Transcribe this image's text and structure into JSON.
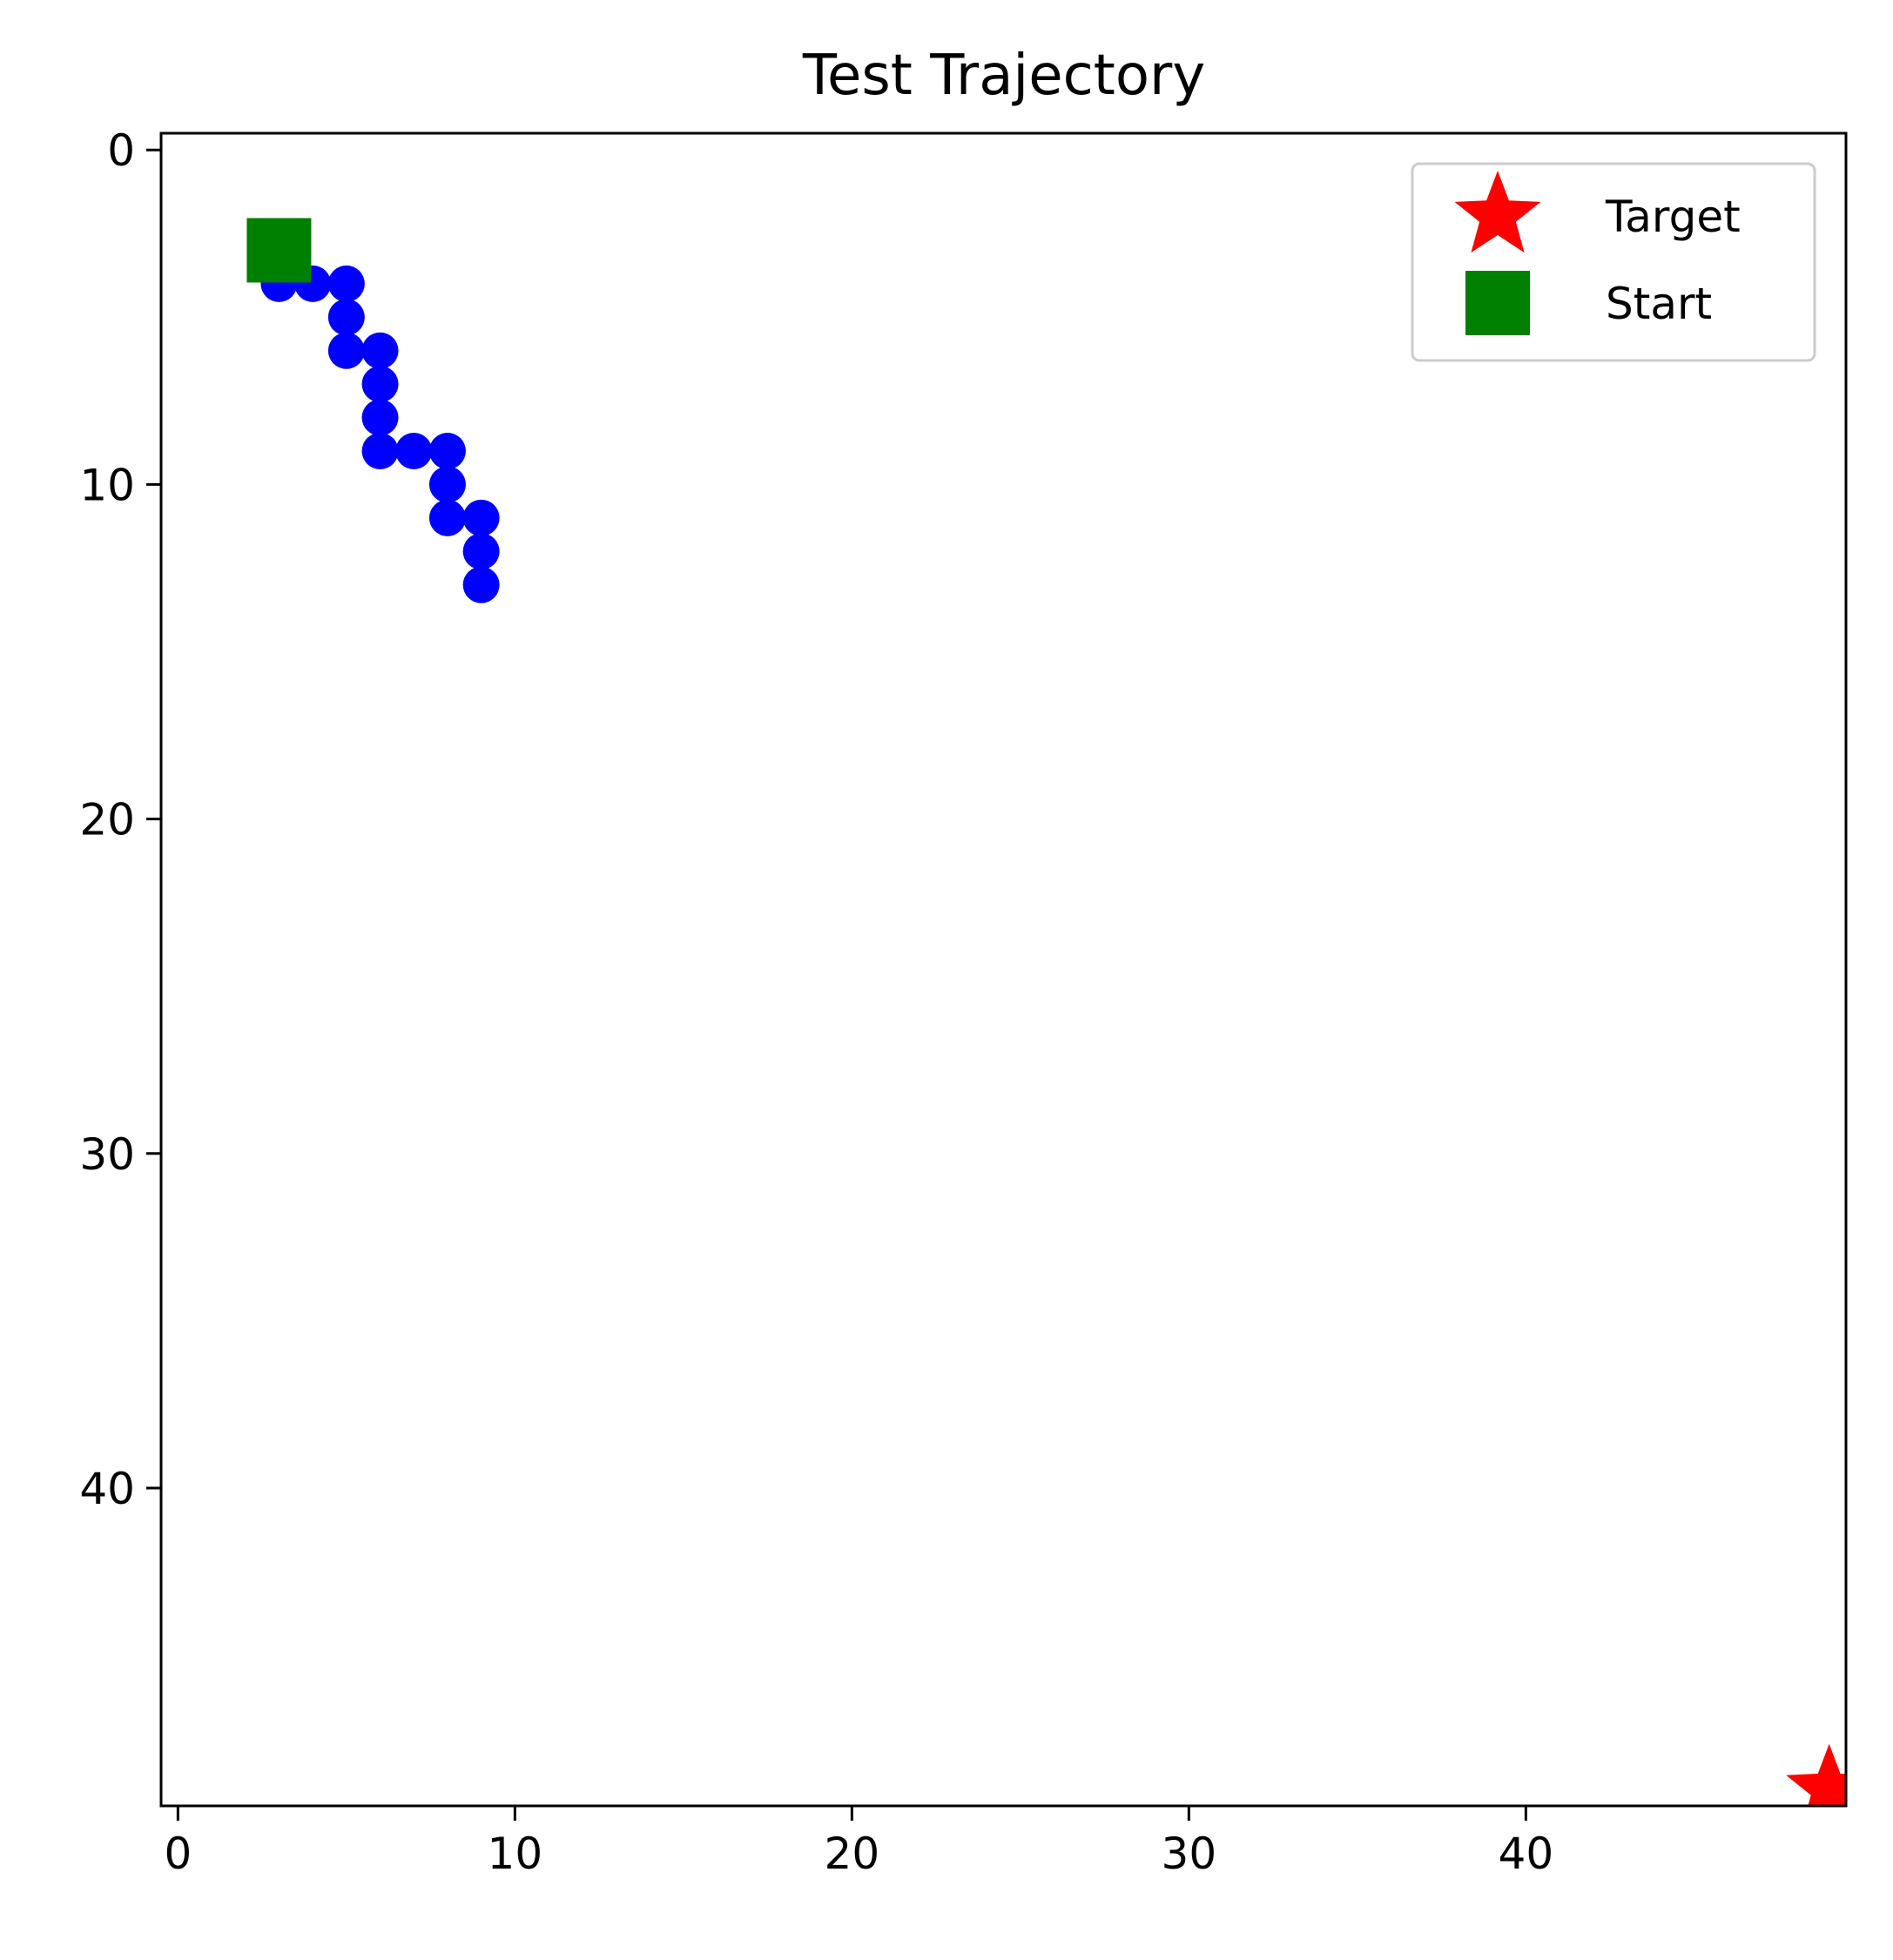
{
  "chart_data": {
    "type": "scatter",
    "title": "Test Trajectory",
    "xlabel": "",
    "ylabel": "",
    "xlim": [
      -0.5,
      49.5
    ],
    "ylim": [
      49.5,
      -0.5
    ],
    "y_inverted": true,
    "x_ticks": [
      0,
      10,
      20,
      30,
      40
    ],
    "y_ticks": [
      0,
      10,
      20,
      30,
      40
    ],
    "grid": false,
    "legend_position": "upper right",
    "series": [
      {
        "style": "line-markers",
        "color": "#0000ff",
        "points": [
          {
            "x": 3,
            "y": 4
          },
          {
            "x": 4,
            "y": 4
          },
          {
            "x": 5,
            "y": 4
          },
          {
            "x": 5,
            "y": 5
          },
          {
            "x": 5,
            "y": 6
          },
          {
            "x": 6,
            "y": 6
          },
          {
            "x": 6,
            "y": 7
          },
          {
            "x": 6,
            "y": 8
          },
          {
            "x": 6,
            "y": 9
          },
          {
            "x": 7,
            "y": 9
          },
          {
            "x": 8,
            "y": 9
          },
          {
            "x": 8,
            "y": 10
          },
          {
            "x": 8,
            "y": 11
          },
          {
            "x": 9,
            "y": 11
          },
          {
            "x": 9,
            "y": 12
          },
          {
            "x": 9,
            "y": 13
          }
        ]
      },
      {
        "name": "Target",
        "marker": "star",
        "color": "#ff0000",
        "points": [
          {
            "x": 49,
            "y": 49
          }
        ]
      },
      {
        "name": "Start",
        "marker": "square",
        "color": "#008000",
        "points": [
          {
            "x": 3,
            "y": 3
          }
        ]
      }
    ],
    "legend": [
      {
        "label": "Target",
        "marker": "star",
        "color": "#ff0000"
      },
      {
        "label": "Start",
        "marker": "square",
        "color": "#008000"
      }
    ]
  }
}
